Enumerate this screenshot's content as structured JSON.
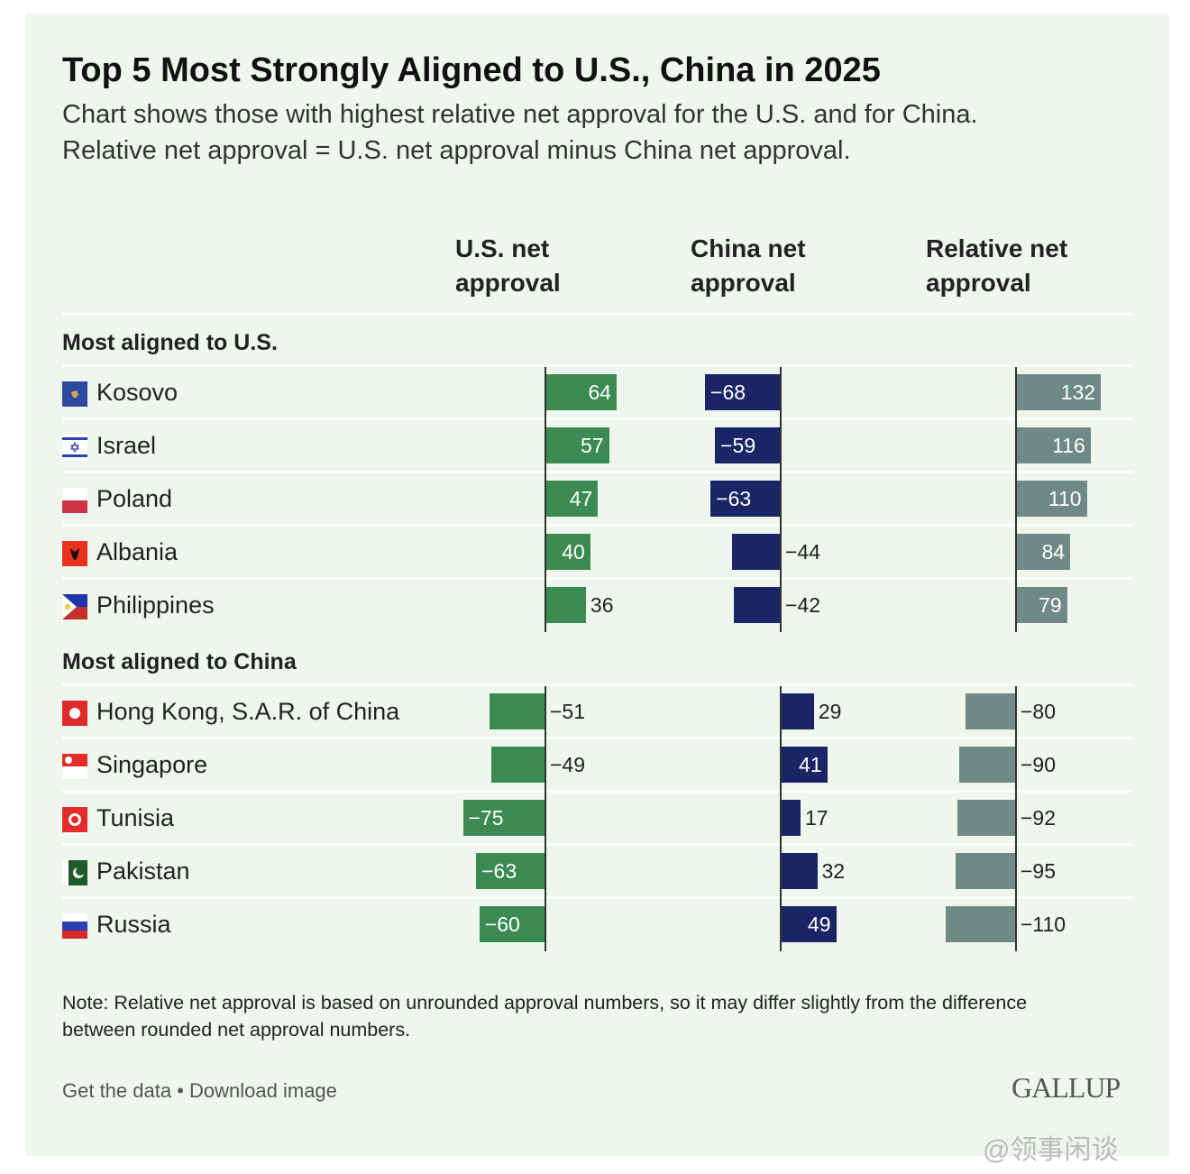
{
  "title": "Top 5 Most Strongly Aligned to U.S., China in 2025",
  "subtitle_lines": [
    "Chart shows those with highest relative net approval for the U.S. and for China.",
    "Relative net approval = U.S. net approval minus China net approval."
  ],
  "note": "Note: Relative net approval is based on unrounded approval numbers, so it may differ slightly from the difference between rounded net approval numbers.",
  "links": {
    "get_data": "Get the data",
    "sep": " • ",
    "download": "Download image"
  },
  "logo": "GALLUP",
  "watermark": "@领事闲谈",
  "colors": {
    "us": "#3b8a51",
    "china": "#1b2466",
    "relative": "#6f8a84",
    "background": "#eff6ee"
  },
  "chart_data": {
    "type": "bar",
    "columns": [
      "U.S. net approval",
      "China net approval",
      "Relative net approval"
    ],
    "sections": [
      {
        "title": "Most aligned to U.S.",
        "rows": [
          {
            "country": "Kosovo",
            "flag": "kosovo-flag",
            "us": 64,
            "china": -68,
            "relative": 132
          },
          {
            "country": "Israel",
            "flag": "israel-flag",
            "us": 57,
            "china": -59,
            "relative": 116
          },
          {
            "country": "Poland",
            "flag": "poland-flag",
            "us": 47,
            "china": -63,
            "relative": 110
          },
          {
            "country": "Albania",
            "flag": "albania-flag",
            "us": 40,
            "china": -44,
            "relative": 84
          },
          {
            "country": "Philippines",
            "flag": "philippines-flag",
            "us": 36,
            "china": -42,
            "relative": 79
          }
        ]
      },
      {
        "title": "Most aligned to China",
        "rows": [
          {
            "country": "Hong Kong, S.A.R. of China",
            "flag": "hong-kong-flag",
            "us": -51,
            "china": 29,
            "relative": -80
          },
          {
            "country": "Singapore",
            "flag": "singapore-flag",
            "us": -49,
            "china": 41,
            "relative": -90
          },
          {
            "country": "Tunisia",
            "flag": "tunisia-flag",
            "us": -75,
            "china": 17,
            "relative": -92
          },
          {
            "country": "Pakistan",
            "flag": "pakistan-flag",
            "us": -63,
            "china": 32,
            "relative": -95
          },
          {
            "country": "Russia",
            "flag": "russia-flag",
            "us": -60,
            "china": 49,
            "relative": -110
          }
        ]
      }
    ]
  }
}
